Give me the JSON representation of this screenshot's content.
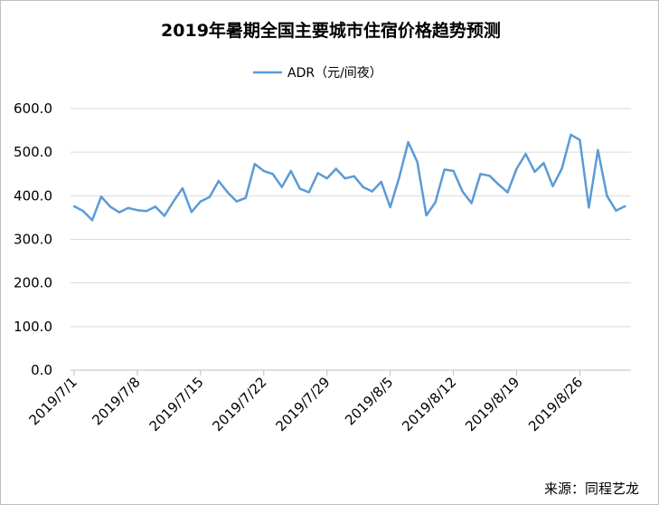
{
  "chart_data": {
    "type": "line",
    "title": "2019年暑期全国主要城市住宿价格趋势预测",
    "xlabel": "",
    "ylabel": "",
    "ylim": [
      0,
      600
    ],
    "yticks": [
      "0.0",
      "100.0",
      "200.0",
      "300.0",
      "400.0",
      "500.0",
      "600.0"
    ],
    "xticks": [
      "2019/7/1",
      "2019/7/8",
      "2019/7/15",
      "2019/7/22",
      "2019/7/29",
      "2019/8/5",
      "2019/8/12",
      "2019/8/19",
      "2019/8/26"
    ],
    "grid": "horizontal",
    "legend": "top-center",
    "series": [
      {
        "name": "ADR（元/间夜）",
        "color": "#5b9bd5",
        "values": [
          376,
          365,
          344,
          398,
          375,
          362,
          372,
          367,
          365,
          375,
          354,
          387,
          417,
          363,
          387,
          397,
          434,
          408,
          387,
          395,
          473,
          457,
          450,
          420,
          457,
          416,
          408,
          452,
          440,
          462,
          440,
          445,
          420,
          410,
          432,
          374,
          442,
          523,
          478,
          355,
          385,
          460,
          457,
          410,
          383,
          450,
          446,
          426,
          408,
          462,
          496,
          455,
          475,
          422,
          462,
          540,
          528,
          373,
          505,
          400,
          366,
          376
        ]
      }
    ]
  },
  "source": "来源：同程艺龙"
}
